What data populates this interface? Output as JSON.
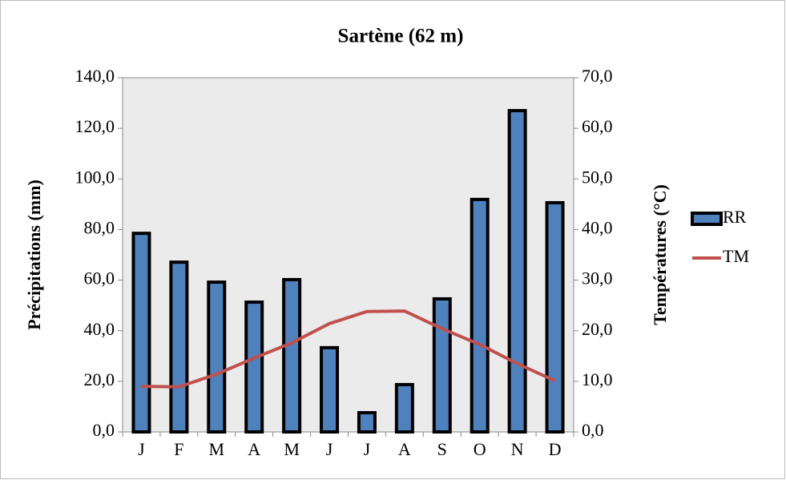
{
  "chart_data": {
    "type": "bar_line",
    "title": "Sartène (62 m)",
    "y_label": "Précipitations (mm)",
    "y2_label": "Températures (°C)",
    "categories": [
      "J",
      "F",
      "M",
      "A",
      "M",
      "J",
      "J",
      "A",
      "S",
      "O",
      "N",
      "D"
    ],
    "series": [
      {
        "name": "RR",
        "type": "bar",
        "color": "#4f81bd",
        "values": [
          78.5,
          67.1,
          59.2,
          51.3,
          60.2,
          33.3,
          7.6,
          18.7,
          52.6,
          91.9,
          127.0,
          90.6
        ]
      },
      {
        "name": "TM",
        "type": "line",
        "axis": "y2",
        "color": "#c0504d",
        "values": [
          9.0,
          8.9,
          11.4,
          14.6,
          17.6,
          21.4,
          23.8,
          23.9,
          20.4,
          17.3,
          13.5,
          10.1
        ]
      }
    ],
    "ylim": [
      0,
      140
    ],
    "yticks": [
      {
        "value": 0,
        "label": "0,0"
      },
      {
        "value": 20,
        "label": "20,0"
      },
      {
        "value": 40,
        "label": "40,0"
      },
      {
        "value": 60,
        "label": "60,0"
      },
      {
        "value": 80,
        "label": "80,0"
      },
      {
        "value": 100,
        "label": "100,0"
      },
      {
        "value": 120,
        "label": "120,0"
      },
      {
        "value": 140,
        "label": "140,0"
      }
    ],
    "y2lim": [
      0,
      70
    ],
    "y2ticks": [
      {
        "value": 0,
        "label": "0,0"
      },
      {
        "value": 10,
        "label": "10,0"
      },
      {
        "value": 20,
        "label": "20,0"
      },
      {
        "value": 30,
        "label": "30,0"
      },
      {
        "value": 40,
        "label": "40,0"
      },
      {
        "value": 50,
        "label": "50,0"
      },
      {
        "value": 60,
        "label": "60,0"
      },
      {
        "value": 70,
        "label": "70,0"
      }
    ],
    "legend": "right"
  }
}
